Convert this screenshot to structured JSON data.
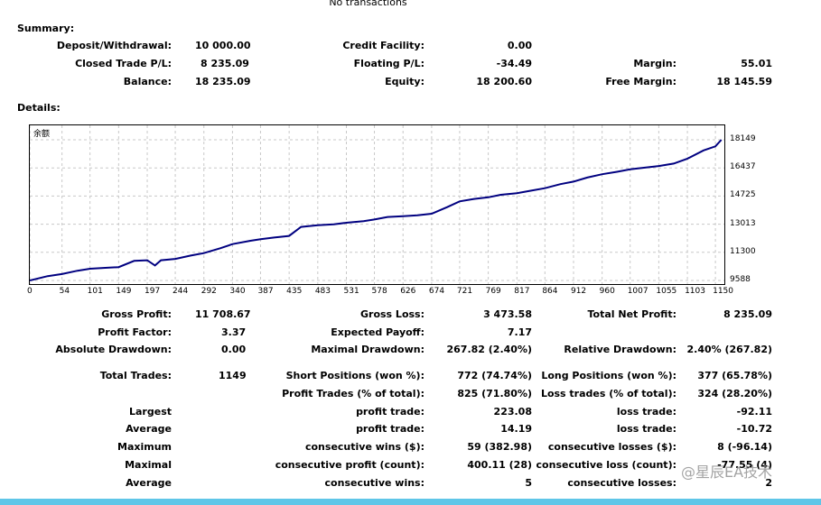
{
  "top_note": "No transactions",
  "summary": {
    "title": "Summary:",
    "deposit_label": "Deposit/Withdrawal:",
    "deposit_value": "10 000.00",
    "credit_label": "Credit Facility:",
    "credit_value": "0.00",
    "closed_label": "Closed Trade P/L:",
    "closed_value": "8 235.09",
    "floating_label": "Floating P/L:",
    "floating_value": "-34.49",
    "margin_label": "Margin:",
    "margin_value": "55.01",
    "balance_label": "Balance:",
    "balance_value": "18 235.09",
    "equity_label": "Equity:",
    "equity_value": "18 200.60",
    "free_margin_label": "Free Margin:",
    "free_margin_value": "18 145.59"
  },
  "details_title": "Details:",
  "chart_data": {
    "type": "line",
    "legend": "余额",
    "color": "#000080",
    "x_ticks": [
      "0",
      "54",
      "101",
      "149",
      "197",
      "244",
      "292",
      "340",
      "387",
      "435",
      "483",
      "531",
      "578",
      "626",
      "674",
      "721",
      "769",
      "817",
      "864",
      "912",
      "960",
      "1007",
      "1055",
      "1103",
      "1150"
    ],
    "y_ticks": [
      "18149",
      "16437",
      "14725",
      "13013",
      "11300",
      "9588"
    ],
    "ylim": [
      9588,
      18149
    ],
    "xlim": [
      0,
      1165
    ],
    "x": [
      0,
      30,
      54,
      80,
      101,
      130,
      149,
      175,
      197,
      210,
      220,
      244,
      270,
      292,
      320,
      340,
      370,
      387,
      410,
      435,
      455,
      483,
      510,
      531,
      560,
      578,
      600,
      626,
      650,
      674,
      700,
      721,
      745,
      769,
      790,
      817,
      840,
      864,
      890,
      912,
      935,
      960,
      985,
      1007,
      1030,
      1055,
      1080,
      1103,
      1130,
      1150,
      1160
    ],
    "y": [
      9588,
      9850,
      9980,
      10180,
      10300,
      10360,
      10400,
      10780,
      10820,
      10500,
      10820,
      10900,
      11100,
      11250,
      11550,
      11800,
      12000,
      12100,
      12200,
      12300,
      12850,
      12950,
      13000,
      13100,
      13200,
      13300,
      13450,
      13500,
      13550,
      13650,
      14050,
      14400,
      14550,
      14650,
      14800,
      14900,
      15050,
      15200,
      15450,
      15600,
      15850,
      16050,
      16200,
      16350,
      16450,
      16550,
      16700,
      17000,
      17500,
      17750,
      18149
    ]
  },
  "details": {
    "gross_profit_label": "Gross Profit:",
    "gross_profit_value": "11 708.67",
    "gross_loss_label": "Gross Loss:",
    "gross_loss_value": "3 473.58",
    "net_profit_label": "Total Net Profit:",
    "net_profit_value": "8 235.09",
    "profit_factor_label": "Profit Factor:",
    "profit_factor_value": "3.37",
    "expected_payoff_label": "Expected Payoff:",
    "expected_payoff_value": "7.17",
    "abs_dd_label": "Absolute Drawdown:",
    "abs_dd_value": "0.00",
    "max_dd_label": "Maximal Drawdown:",
    "max_dd_value": "267.82 (2.40%)",
    "rel_dd_label": "Relative Drawdown:",
    "rel_dd_value": "2.40% (267.82)",
    "total_trades_label": "Total Trades:",
    "total_trades_value": "1149",
    "short_label": "Short Positions (won %):",
    "short_value": "772 (74.74%)",
    "long_label": "Long Positions (won %):",
    "long_value": "377 (65.78%)",
    "profit_trades_label": "Profit Trades (% of total):",
    "profit_trades_value": "825 (71.80%)",
    "loss_trades_label": "Loss trades (% of total):",
    "loss_trades_value": "324 (28.20%)",
    "largest_label": "Largest",
    "largest_profit_label": "profit trade:",
    "largest_profit_value": "223.08",
    "largest_loss_label": "loss trade:",
    "largest_loss_value": "-92.11",
    "average_label": "Average",
    "average_profit_label": "profit trade:",
    "average_profit_value": "14.19",
    "average_loss_label": "loss trade:",
    "average_loss_value": "-10.72",
    "maximum_label": "Maximum",
    "max_cons_wins_label": "consecutive wins ($):",
    "max_cons_wins_value": "59 (382.98)",
    "max_cons_losses_label": "consecutive losses ($):",
    "max_cons_losses_value": "8 (-96.14)",
    "maximal_label": "Maximal",
    "maximal_profit_label": "consecutive profit (count):",
    "maximal_profit_value": "400.11 (28)",
    "maximal_loss_label": "consecutive loss (count):",
    "maximal_loss_value": "-77.55 (4)",
    "average2_label": "Average",
    "avg_cons_wins_label": "consecutive wins:",
    "avg_cons_wins_value": "5",
    "avg_cons_losses_label": "consecutive losses:",
    "avg_cons_losses_value": "2"
  },
  "watermark": "@星辰EA技术"
}
